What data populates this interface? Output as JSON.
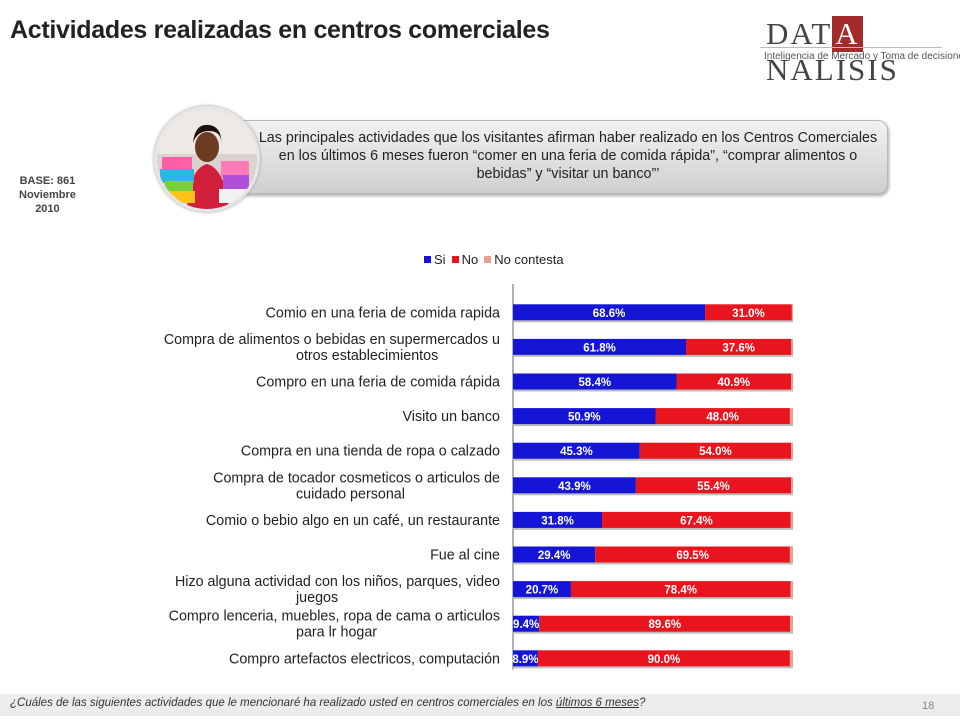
{
  "header": {
    "title": "Actividades realizadas en centros comerciales",
    "logo_pre": "DAT",
    "logo_accent": "A",
    "logo_post": "NALISIS",
    "logo_tagline": "Inteligencia de Mercado y Toma de decisiones"
  },
  "base": {
    "label": "BASE: 861",
    "month": "Noviembre",
    "year": "2010"
  },
  "callout": {
    "text": "Las principales actividades que los visitantes afirman haber realizado en los Centros Comerciales en los últimos 6 meses fueron “comer en una feria de comida rápida”, “comprar alimentos o bebidas” y “visitar un banco”’"
  },
  "footer": {
    "question_pre": "¿Cuáles de las siguientes actividades que le mencionaré ha realizado usted en centros comerciales en los ",
    "question_emph": "últimos 6 meses",
    "question_post": "?",
    "page_number": "18"
  },
  "colors": {
    "si": "#1515d6",
    "no": "#e8141e",
    "no_contesta": "#e8a090"
  },
  "chart_data": {
    "type": "bar",
    "orientation": "horizontal",
    "stacked": true,
    "percent_stacked": true,
    "xlim": [
      0,
      100
    ],
    "grid": false,
    "legend_position": "top",
    "categories": [
      [
        "Comio en una feria de comida rapida"
      ],
      [
        "Compra de alimentos o bebidas en supermercados u",
        "otros establecimientos"
      ],
      [
        "Compro en una feria de comida rápida"
      ],
      [
        "Visito un banco"
      ],
      [
        "Compra en una tienda de ropa o calzado"
      ],
      [
        "Compra de tocador cosmeticos o articulos de",
        "cuidado personal"
      ],
      [
        "Comio o bebio algo en un café, un restaurante"
      ],
      [
        "Fue al cine"
      ],
      [
        "Hizo alguna actividad con los niños, parques, video",
        "juegos"
      ],
      [
        "Compro lenceria, muebles, ropa de cama o articulos",
        "para lr hogar"
      ],
      [
        "Compro artefactos electricos, computación"
      ]
    ],
    "series": [
      {
        "name": "Si",
        "values": [
          68.6,
          61.8,
          58.4,
          50.9,
          45.3,
          43.9,
          31.8,
          29.4,
          20.7,
          9.4,
          8.9
        ],
        "labels": [
          "68.6%",
          "61.8%",
          "58.4%",
          "50.9%",
          "45.3%",
          "43.9%",
          "31.8%",
          "29.4%",
          "20.7%",
          "9.4%",
          "8.9%"
        ]
      },
      {
        "name": "No",
        "values": [
          31.0,
          37.6,
          40.9,
          48.0,
          54.0,
          55.4,
          67.4,
          69.5,
          78.4,
          89.6,
          90.0
        ],
        "labels": [
          "31.0%",
          "37.6%",
          "40.9%",
          "48.0%",
          "54.0%",
          "55.4%",
          "67.4%",
          "69.5%",
          "78.4%",
          "89.6%",
          "90.0%"
        ]
      },
      {
        "name": "No contesta",
        "values": [
          0.4,
          0.6,
          0.7,
          1.1,
          0.7,
          0.7,
          0.8,
          1.1,
          0.9,
          1.0,
          1.1
        ],
        "labels": []
      }
    ]
  }
}
